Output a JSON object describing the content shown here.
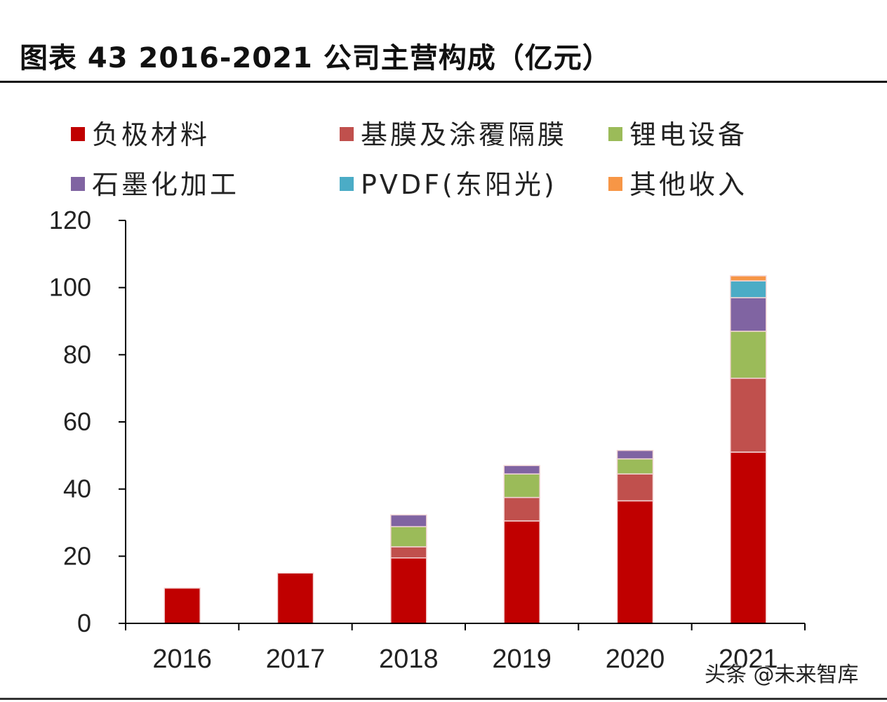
{
  "title": "图表 43 2016-2021 公司主营构成（亿元）",
  "watermark": "头条 @未来智库",
  "chart_data": {
    "type": "bar",
    "stacked": true,
    "categories": [
      "2016",
      "2017",
      "2018",
      "2019",
      "2020",
      "2021"
    ],
    "ylim": [
      0,
      120
    ],
    "yticks": [
      0,
      20,
      40,
      60,
      80,
      100,
      120
    ],
    "grid": false,
    "legend_position": "top",
    "series": [
      {
        "name": "负极材料",
        "color": "#C00000",
        "values": [
          10.5,
          15,
          19.5,
          30.5,
          36.5,
          51
        ]
      },
      {
        "name": "基膜及涂覆隔膜",
        "color": "#C0504D",
        "values": [
          0,
          0,
          3.3,
          7,
          8,
          22
        ]
      },
      {
        "name": "锂电设备",
        "color": "#9BBB59",
        "values": [
          0,
          0,
          6,
          7,
          4.5,
          14
        ]
      },
      {
        "name": "石墨化加工",
        "color": "#8064A2",
        "values": [
          0,
          0,
          3.5,
          2.5,
          2.5,
          10
        ]
      },
      {
        "name": "PVDF(东阳光)",
        "color": "#4BACC6",
        "values": [
          0,
          0,
          0,
          0,
          0,
          5
        ]
      },
      {
        "name": "其他收入",
        "color": "#F79646",
        "values": [
          0,
          0,
          0,
          0,
          0,
          1.5
        ]
      }
    ]
  }
}
